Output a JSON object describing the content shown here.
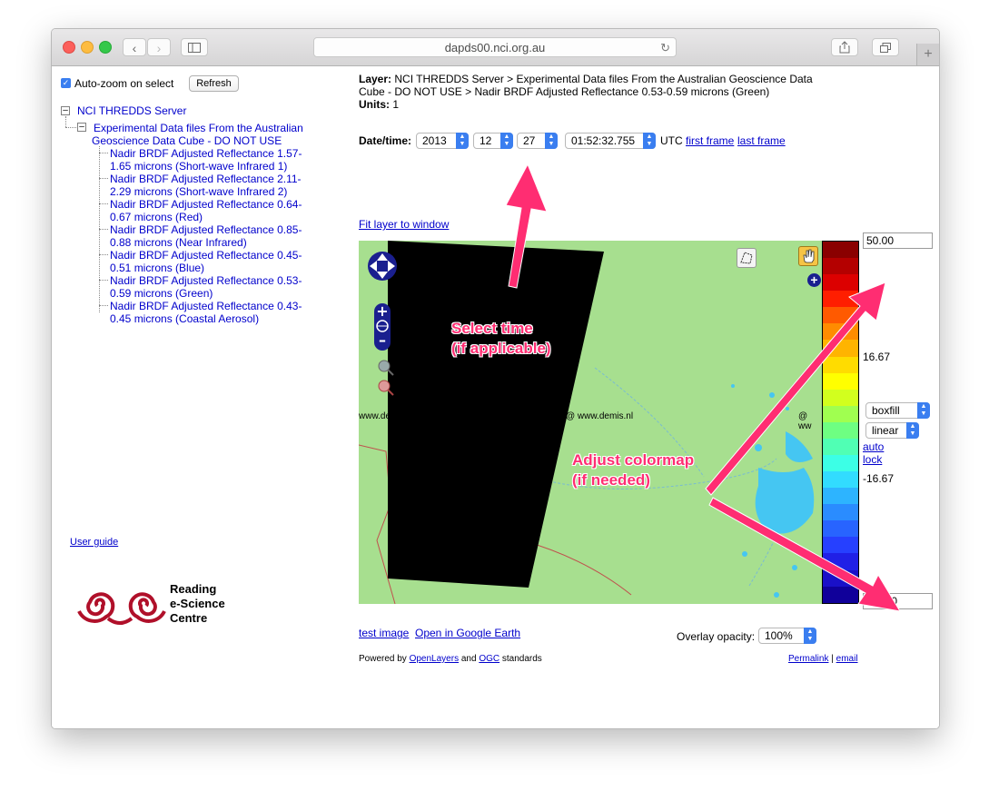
{
  "browser": {
    "url": "dapds00.nci.org.au"
  },
  "sidebar": {
    "autozoom_label": "Auto-zoom on select",
    "refresh_label": "Refresh",
    "tree": {
      "root": "NCI THREDDS Server",
      "group_line1": "Experimental Data files From the Australian",
      "group_line2": "Geoscience Data Cube - DO NOT USE",
      "items": [
        {
          "line1": "Nadir BRDF Adjusted Reflectance 1.57-",
          "line2": "1.65 microns (Short-wave Infrared 1)"
        },
        {
          "line1": "Nadir BRDF Adjusted Reflectance 2.11-",
          "line2": "2.29 microns (Short-wave Infrared 2)"
        },
        {
          "line1": "Nadir BRDF Adjusted Reflectance 0.64-",
          "line2": "0.67 microns (Red)"
        },
        {
          "line1": "Nadir BRDF Adjusted Reflectance 0.85-",
          "line2": "0.88 microns (Near Infrared)"
        },
        {
          "line1": "Nadir BRDF Adjusted Reflectance 0.45-",
          "line2": "0.51 microns (Blue)"
        },
        {
          "line1": "Nadir BRDF Adjusted Reflectance 0.53-",
          "line2": "0.59 microns (Green)"
        },
        {
          "line1": "Nadir BRDF Adjusted Reflectance 0.43-",
          "line2": "0.45 microns (Coastal Aerosol)"
        }
      ]
    },
    "user_guide": "User guide",
    "logo": {
      "line1": "Reading",
      "line2": "e-Science",
      "line3": "Centre"
    }
  },
  "layer": {
    "label": "Layer:",
    "line1": "NCI THREDDS Server > Experimental Data files From the Australian Geoscience Data",
    "line2": "Cube - DO NOT USE > Nadir BRDF Adjusted Reflectance 0.53-0.59 microns (Green)",
    "units_label": "Units:",
    "units_value": "1"
  },
  "datetime": {
    "label": "Date/time:",
    "year": "2013",
    "month": "12",
    "day": "27",
    "time": "01:52:32.755",
    "tz": "UTC",
    "first_frame": "first frame",
    "last_frame": "last frame"
  },
  "fit_layer": "Fit layer to window",
  "map": {
    "attribution_left": "www.demis",
    "attribution_mid": "@ www.demis.nl",
    "attribution_right": "@ ww"
  },
  "colorbar": {
    "max": "50.00",
    "mid_high": "16.67",
    "mid_low": "-16.67",
    "min": "-50.00",
    "style": "boxfill",
    "scale": "linear",
    "auto": "auto",
    "lock": "lock",
    "colors": [
      "#8a0000",
      "#b40000",
      "#dc0000",
      "#ff1e00",
      "#ff5a00",
      "#ff8c00",
      "#ffb400",
      "#ffdc00",
      "#ffff00",
      "#d2ff1e",
      "#a0ff50",
      "#6eff82",
      "#50ffb4",
      "#3cffe6",
      "#32dcff",
      "#2db4ff",
      "#2a8cff",
      "#2864ff",
      "#2640ff",
      "#2020e6",
      "#1a10c8",
      "#10009a"
    ]
  },
  "annotations": {
    "select_time_1": "Select time",
    "select_time_2": "(if applicable)",
    "adjust_1": "Adjust colormap",
    "adjust_2": "(if needed)"
  },
  "bottom": {
    "test_image": "test image",
    "google_earth": "Open in Google Earth",
    "opacity_label": "Overlay opacity:",
    "opacity_value": "100%",
    "powered_by": "Powered by",
    "openlayers": "OpenLayers",
    "and": "and",
    "ogc": "OGC",
    "standards": "standards",
    "permalink": "Permalink",
    "sep": "|",
    "email": "email"
  },
  "colors": {
    "link": "#0000cc",
    "annotation": "#ff2d72",
    "map_land": "#a7df8f",
    "water": "#45c6f2"
  }
}
